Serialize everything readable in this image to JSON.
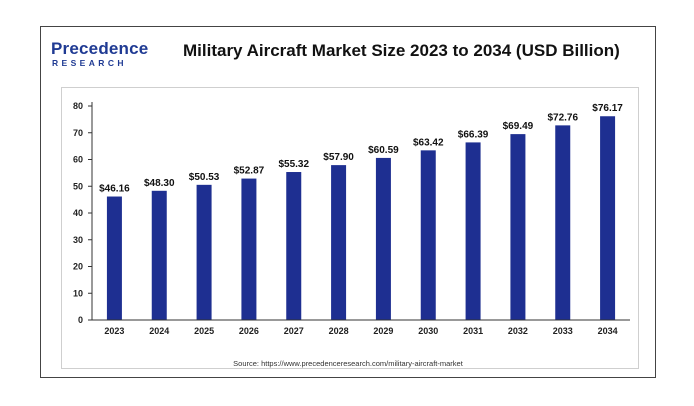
{
  "brand": {
    "name": "Precedence",
    "sub": "RESEARCH"
  },
  "colors": {
    "bar": "#1e2f91",
    "brand": "#1f3a93",
    "axis": "#333333"
  },
  "chart_data": {
    "type": "bar",
    "title": "Military Aircraft Market Size 2023 to 2034 (USD Billion)",
    "xlabel": "",
    "ylabel": "",
    "ylim": [
      0,
      80
    ],
    "yticks": [
      0,
      10,
      20,
      30,
      40,
      50,
      60,
      70,
      80
    ],
    "grid": false,
    "categories": [
      "2023",
      "2024",
      "2025",
      "2026",
      "2027",
      "2028",
      "2029",
      "2030",
      "2031",
      "2032",
      "2033",
      "2034"
    ],
    "values": [
      46.16,
      48.3,
      50.53,
      52.87,
      55.32,
      57.9,
      60.59,
      63.42,
      66.39,
      69.49,
      72.76,
      76.17
    ],
    "labels": [
      "$46.16",
      "$48.30",
      "$50.53",
      "$52.87",
      "$55.32",
      "$57.90",
      "$60.59",
      "$63.42",
      "$66.39",
      "$69.49",
      "$72.76",
      "$76.17"
    ],
    "source": "Source: https://www.precedenceresearch.com/military-aircraft-market"
  }
}
